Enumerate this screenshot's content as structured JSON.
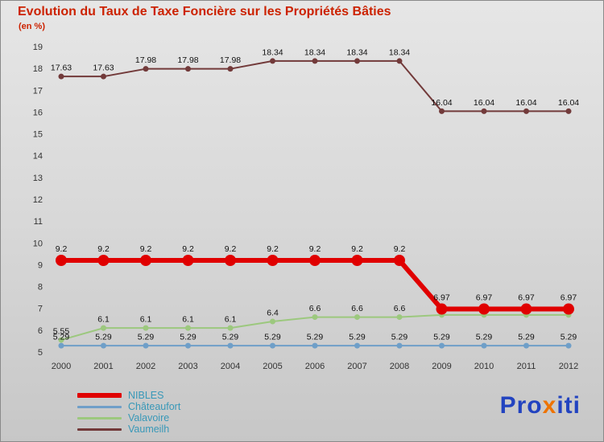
{
  "header": {
    "subtitle": "(en %)"
  },
  "colors": {
    "title": "#cc2200",
    "legend_text": "#3898b8",
    "axis": "#333333",
    "data_label": "#111111",
    "logo_blue": "#2243c0",
    "logo_orange": "#ee7300"
  },
  "chart_data": {
    "type": "line",
    "title": "Evolution du Taux de Taxe Foncière sur les Propriétés Bâties",
    "ylabel": "en %",
    "x": [
      "2000",
      "2001",
      "2002",
      "2003",
      "2004",
      "2005",
      "2006",
      "2007",
      "2008",
      "2009",
      "2010",
      "2011",
      "2012"
    ],
    "ylim": [
      5,
      19
    ],
    "yticks": [
      5,
      6,
      7,
      8,
      9,
      10,
      11,
      12,
      13,
      14,
      15,
      16,
      17,
      18,
      19
    ],
    "grid": false,
    "legend_position": "bottom-left",
    "series": [
      {
        "name": "NIBLES",
        "color": "#e00000",
        "line_width": 6,
        "marker_radius": 7,
        "z": 3,
        "values": [
          9.2,
          9.2,
          9.2,
          9.2,
          9.2,
          9.2,
          9.2,
          9.2,
          9.2,
          6.97,
          6.97,
          6.97,
          6.97
        ],
        "labels": [
          "9.2",
          "9.2",
          "9.2",
          "9.2",
          "9.2",
          "9.2",
          "9.2",
          "9.2",
          "9.2",
          "6.97",
          "6.97",
          "6.97",
          "6.97"
        ]
      },
      {
        "name": "Châteaufort",
        "color": "#6f9fc8",
        "line_width": 2,
        "marker_radius": 3.5,
        "z": 1,
        "values": [
          5.29,
          5.29,
          5.29,
          5.29,
          5.29,
          5.29,
          5.29,
          5.29,
          5.29,
          5.29,
          5.29,
          5.29,
          5.29
        ],
        "labels": [
          "5.29",
          "5.29",
          "5.29",
          "5.29",
          "5.29",
          "5.29",
          "5.29",
          "5.29",
          "5.29",
          "5.29",
          "5.29",
          "5.29",
          "5.29"
        ]
      },
      {
        "name": "Valavoire",
        "color": "#9cc87e",
        "line_width": 2,
        "marker_radius": 3.5,
        "z": 2,
        "values": [
          5.55,
          6.1,
          6.1,
          6.1,
          6.1,
          6.4,
          6.6,
          6.6,
          6.6,
          6.7,
          6.7,
          6.7,
          6.7
        ],
        "labels": [
          "5.55",
          "6.1",
          "6.1",
          "6.1",
          "6.1",
          "6.4",
          "6.6",
          "6.6",
          "6.6",
          "",
          "",
          "",
          ""
        ]
      },
      {
        "name": "Vaumeilh",
        "color": "#723a3a",
        "line_width": 2,
        "marker_radius": 3.5,
        "z": 4,
        "values": [
          17.63,
          17.63,
          17.98,
          17.98,
          17.98,
          18.34,
          18.34,
          18.34,
          18.34,
          16.04,
          16.04,
          16.04,
          16.04
        ],
        "labels": [
          "17.63",
          "17.63",
          "17.98",
          "17.98",
          "17.98",
          "18.34",
          "18.34",
          "18.34",
          "18.34",
          "16.04",
          "16.04",
          "16.04",
          "16.04"
        ]
      }
    ]
  },
  "legend": [
    {
      "label": "NIBLES"
    },
    {
      "label": "Châteaufort"
    },
    {
      "label": "Valavoire"
    },
    {
      "label": "Vaumeilh"
    }
  ],
  "logo": {
    "part1": "Pro",
    "part2": "x",
    "part3": "iti"
  }
}
